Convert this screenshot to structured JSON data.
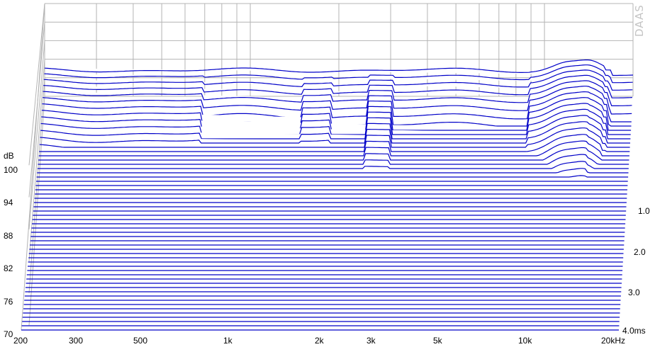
{
  "brand": "DAAS",
  "chart_data": {
    "type": "waterfall",
    "title": "",
    "y_unit": "dB",
    "x_unit": "kHz",
    "z_unit": "ms",
    "y_ticks": [
      "100",
      "94",
      "88",
      "82",
      "76",
      "70"
    ],
    "x_ticks": [
      "200",
      "300",
      "500",
      "1k",
      "2k",
      "3k",
      "5k",
      "10k",
      "20kHz"
    ],
    "z_ticks": [
      "1.0",
      "2.0",
      "3.0",
      "4.0ms"
    ],
    "xlim": [
      200,
      20000
    ],
    "ylim": [
      70,
      100
    ],
    "zlim": [
      0,
      4.0
    ],
    "x_scale": "log",
    "line_color": "#0000c8",
    "grid_color": "#b4b4b4",
    "slice_count": 56,
    "features": {
      "low_band_db": 99,
      "low_band_decay_ms": 0.8,
      "peak_10k_14k_db": 108,
      "floor_db": 70
    }
  }
}
